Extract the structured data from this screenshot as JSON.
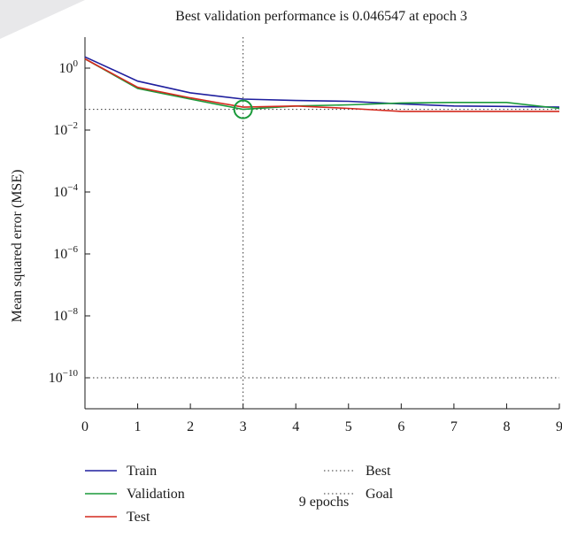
{
  "chart_data": {
    "type": "line",
    "title": "Best validation performance is 0.046547 at epoch 3",
    "xlabel": "9 epochs",
    "ylabel": "Mean squared error (MSE)",
    "xlim": [
      0,
      9
    ],
    "ylim": [
      1e-11,
      10
    ],
    "yscale": "log",
    "x_ticks": [
      "0",
      "1",
      "2",
      "3",
      "4",
      "5",
      "6",
      "7",
      "8",
      "9"
    ],
    "y_ticks": [
      {
        "value": 1,
        "base": "10",
        "exp": "0"
      },
      {
        "value": 0.01,
        "base": "10",
        "exp": "−2"
      },
      {
        "value": 0.0001,
        "base": "10",
        "exp": "−4"
      },
      {
        "value": 1e-06,
        "base": "10",
        "exp": "−6"
      },
      {
        "value": 1e-08,
        "base": "10",
        "exp": "−8"
      },
      {
        "value": 1e-10,
        "base": "10",
        "exp": "−10"
      }
    ],
    "x": [
      0,
      1,
      2,
      3,
      4,
      5,
      6,
      7,
      8,
      9
    ],
    "series": [
      {
        "name": "Train",
        "color": "#1f1f9e",
        "values": [
          2.3,
          0.38,
          0.16,
          0.1,
          0.09,
          0.085,
          0.07,
          0.06,
          0.058,
          0.055
        ]
      },
      {
        "name": "Validation",
        "color": "#1a9a3a",
        "values": [
          2.0,
          0.22,
          0.1,
          0.046547,
          0.06,
          0.065,
          0.075,
          0.078,
          0.078,
          0.05
        ]
      },
      {
        "name": "Test",
        "color": "#d42a1f",
        "values": [
          2.0,
          0.24,
          0.11,
          0.055,
          0.06,
          0.05,
          0.04,
          0.04,
          0.04,
          0.04
        ]
      }
    ],
    "best": {
      "name": "Best",
      "epoch": 3,
      "value": 0.046547,
      "color": "#1a9a3a"
    },
    "goal": {
      "name": "Goal",
      "value": 1e-10
    },
    "legend": [
      {
        "label": "Train",
        "color": "#1f1f9e",
        "style": "solid"
      },
      {
        "label": "Validation",
        "color": "#1a9a3a",
        "style": "solid"
      },
      {
        "label": "Test",
        "color": "#d42a1f",
        "style": "solid"
      },
      {
        "label": "Best",
        "color": "#333333",
        "style": "dotted"
      },
      {
        "label": "Goal",
        "color": "#333333",
        "style": "dotted"
      }
    ],
    "legend_placement": "below",
    "grid": false
  }
}
